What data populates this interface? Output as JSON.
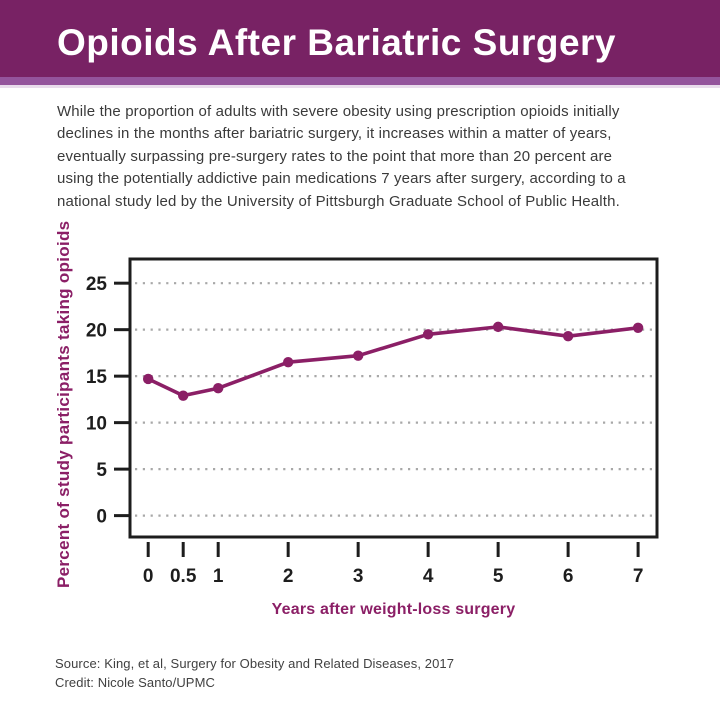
{
  "header": {
    "title": "Opioids After Bariatric Surgery"
  },
  "intro": {
    "lines": [
      "While the proportion of adults with severe obesity using prescription opioids initially",
      "declines in the months after bariatric surgery, it increases within a matter of years,",
      "eventually surpassing pre-surgery rates to the point that more than 20 percent are",
      "using the potentially addictive pain medications 7 years after surgery, according to a",
      "national study led by the University of Pittsburgh Graduate School of Public Health."
    ]
  },
  "chart_data": {
    "type": "line",
    "title": "",
    "x": [
      0,
      0.5,
      1,
      2,
      3,
      4,
      5,
      6,
      7
    ],
    "values": [
      14.7,
      12.9,
      13.7,
      16.5,
      17.2,
      19.5,
      20.3,
      19.3,
      20.2
    ],
    "series_name": "Percent of study participants taking opioids",
    "xlabel": "Years after weight-loss surgery",
    "ylabel": "Percent of study participants taking opioids",
    "yticks": [
      0,
      5,
      10,
      15,
      20,
      25
    ],
    "xticks": [
      0,
      0.5,
      1,
      2,
      3,
      4,
      5,
      6,
      7
    ],
    "xlim": [
      -0.26,
      7.27
    ],
    "ylim": [
      -2.3,
      27.6
    ],
    "grid": "horizontal-dotted",
    "legend": "none",
    "line_color": "#8b1f66",
    "marker": "circle",
    "axis_color": "#1d1d1d",
    "grid_color": "#a8a8a8"
  },
  "footer": {
    "source": "Source: King, et al, Surgery for Obesity and Related Diseases, 2017",
    "credit": "Credit: Nicole Santo/UPMC"
  },
  "colors": {
    "header_bg": "#782264",
    "header_stripe": "#94549c",
    "header_stripe_light": "#e9dcec",
    "accent": "#8b1f66",
    "body_text": "#3a3a3a",
    "background": "#ffffff"
  }
}
